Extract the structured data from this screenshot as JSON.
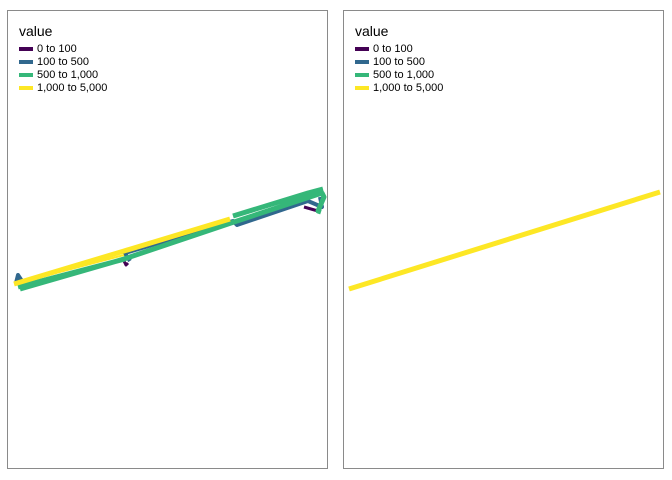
{
  "panels": [
    {
      "legend_title": "value",
      "legend_items": [
        {
          "label": "0 to 100",
          "color": "#440154"
        },
        {
          "label": "100 to 500",
          "color": "#31688E"
        },
        {
          "label": "500 to 1,000",
          "color": "#35B779"
        },
        {
          "label": "1,000 to 5,000",
          "color": "#FDE725"
        }
      ]
    },
    {
      "legend_title": "value",
      "legend_items": [
        {
          "label": "0 to 100",
          "color": "#440154"
        },
        {
          "label": "100 to 500",
          "color": "#31688E"
        },
        {
          "label": "500 to 1,000",
          "color": "#35B779"
        },
        {
          "label": "1,000 to 5,000",
          "color": "#FDE725"
        }
      ]
    }
  ]
}
